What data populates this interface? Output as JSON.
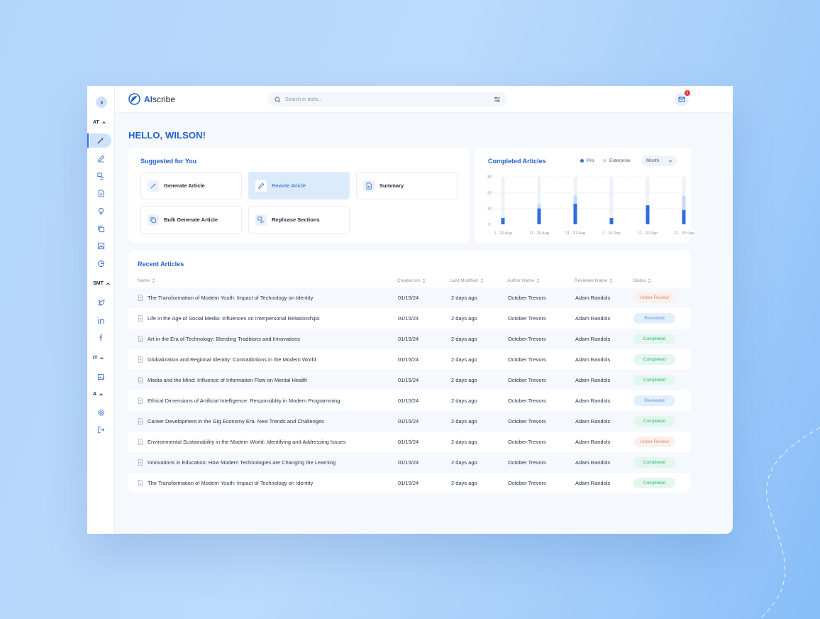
{
  "app": {
    "logo_prefix": "AI",
    "logo_suffix": "scribe"
  },
  "search": {
    "placeholder": "Search in tools..."
  },
  "notifications": {
    "count": "1"
  },
  "sidebar": {
    "sections": [
      {
        "label": "AT"
      },
      {
        "label": "SMT"
      },
      {
        "label": "IT"
      },
      {
        "label": "A"
      }
    ]
  },
  "greeting": "HELLO, WILSON!",
  "suggested": {
    "title": "Suggested for You",
    "tools": [
      {
        "label": "Generate Article",
        "icon": "magic-wand-icon"
      },
      {
        "label": "Rewrite Article",
        "icon": "pen-icon"
      },
      {
        "label": "Summary",
        "icon": "document-icon"
      },
      {
        "label": "Bulk Generate Article",
        "icon": "copy-icon"
      },
      {
        "label": "Rephrase Sections",
        "icon": "rephrase-icon"
      }
    ]
  },
  "chart_data": {
    "type": "bar",
    "title": "Completed Articles",
    "categories": [
      "1 - 10 Aug",
      "11 - 20 Aug",
      "21 - 31 Aug",
      "1 - 10 Sep",
      "11 - 20 Sep",
      "12 - 30 Sep"
    ],
    "series": [
      {
        "name": "Pro",
        "values": [
          4,
          10,
          13,
          4,
          12,
          9
        ]
      },
      {
        "name": "Enterprise",
        "values": [
          0,
          3,
          5,
          0,
          0,
          9
        ]
      }
    ],
    "ylim": [
      0,
      30
    ],
    "yticks": [
      0,
      10,
      20,
      30
    ],
    "grid": true,
    "legend": "top-right",
    "colors": {
      "pro": "#2f6fdb",
      "enterprise": "#c3dbf7",
      "track": "#edf2f8"
    },
    "period_select": "Month"
  },
  "recent": {
    "title": "Recent Articles",
    "columns": [
      "Name",
      "Created on",
      "Last Modified",
      "Author Name",
      "Reviewer Name",
      "Status"
    ],
    "rows": [
      {
        "name": "The Transformation of Modern Youth: Impact of Technology on Identity",
        "created": "01/15/24",
        "modified": "2 days ago",
        "author": "October Trevors",
        "reviewer": "Adam Randols",
        "status": "Under Review"
      },
      {
        "name": "Life in the Age of Social Media: Influences on Interpersonal Relationships",
        "created": "01/15/24",
        "modified": "2 days ago",
        "author": "October Trevors",
        "reviewer": "Adam Randols",
        "status": "Reviewed"
      },
      {
        "name": "Art in the Era of Technology: Blending Traditions and Innovations",
        "created": "01/15/24",
        "modified": "2 days ago",
        "author": "October Trevors",
        "reviewer": "Adam Randols",
        "status": "Completed"
      },
      {
        "name": "Globalization and Regional Identity: Contradictions in the Modern World",
        "created": "01/15/24",
        "modified": "2 days ago",
        "author": "October Trevors",
        "reviewer": "Adam Randols",
        "status": "Completed"
      },
      {
        "name": "Media and the Mind: Influence of Information Flow on Mental Health",
        "created": "01/15/24",
        "modified": "2 days ago",
        "author": "October Trevors",
        "reviewer": "Adam Randols",
        "status": "Completed"
      },
      {
        "name": "Ethical Dimensions of Artificial Intelligence: Responsiblity in Modern Programming",
        "created": "01/15/24",
        "modified": "2 days ago",
        "author": "October Trevors",
        "reviewer": "Adam Randols",
        "status": "Reviewed"
      },
      {
        "name": "Career Development in the Gig Economy Era: New Trends and Challenges",
        "created": "01/15/24",
        "modified": "2 days ago",
        "author": "October Trevors",
        "reviewer": "Adam Randols",
        "status": "Completed"
      },
      {
        "name": "Environmental Sustainability in the Modern World: Identifying and Addressing Issues",
        "created": "01/15/24",
        "modified": "2 days ago",
        "author": "October Trevors",
        "reviewer": "Adam Randols",
        "status": "Under Review"
      },
      {
        "name": "Innovations in Education: How Modern Technologies are Changing the Learning",
        "created": "01/15/24",
        "modified": "2 days ago",
        "author": "October Trevors",
        "reviewer": "Adam Randols",
        "status": "Completed"
      },
      {
        "name": "The Transformation of Modern Youth: Impact of Technology on Identity",
        "created": "01/15/24",
        "modified": "2 days ago",
        "author": "October Trevors",
        "reviewer": "Adam Randols",
        "status": "Completed"
      }
    ]
  }
}
